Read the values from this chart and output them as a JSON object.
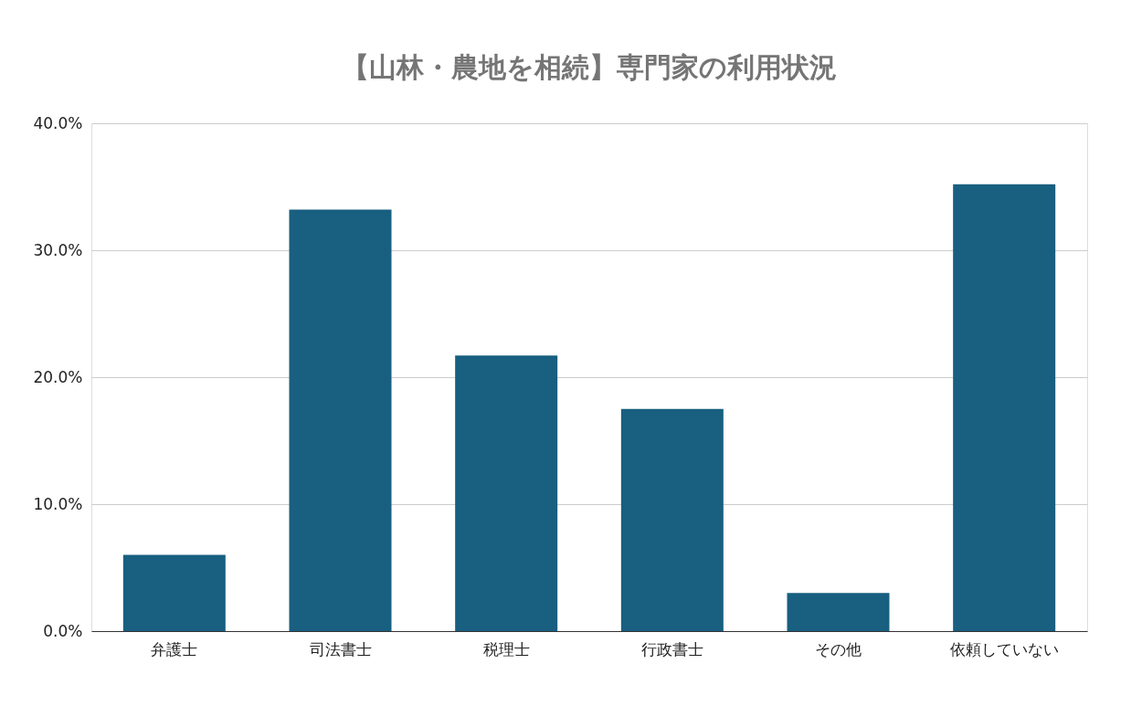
{
  "chart_data": {
    "type": "bar",
    "title": "【山林・農地を相続】専門家の利用状況",
    "categories": [
      "弁護士",
      "司法書士",
      "税理士",
      "行政書士",
      "その他",
      "依頼していない"
    ],
    "values": [
      6.0,
      33.2,
      21.7,
      17.5,
      3.0,
      35.2
    ],
    "color": "#185f80",
    "ylim": [
      0,
      40
    ],
    "yticks": [
      {
        "value": 0,
        "label": "0.0%"
      },
      {
        "value": 10,
        "label": "10.0%"
      },
      {
        "value": 20,
        "label": "20.0%"
      },
      {
        "value": 30,
        "label": "30.0%"
      },
      {
        "value": 40,
        "label": "40.0%"
      }
    ],
    "grid": "y"
  }
}
